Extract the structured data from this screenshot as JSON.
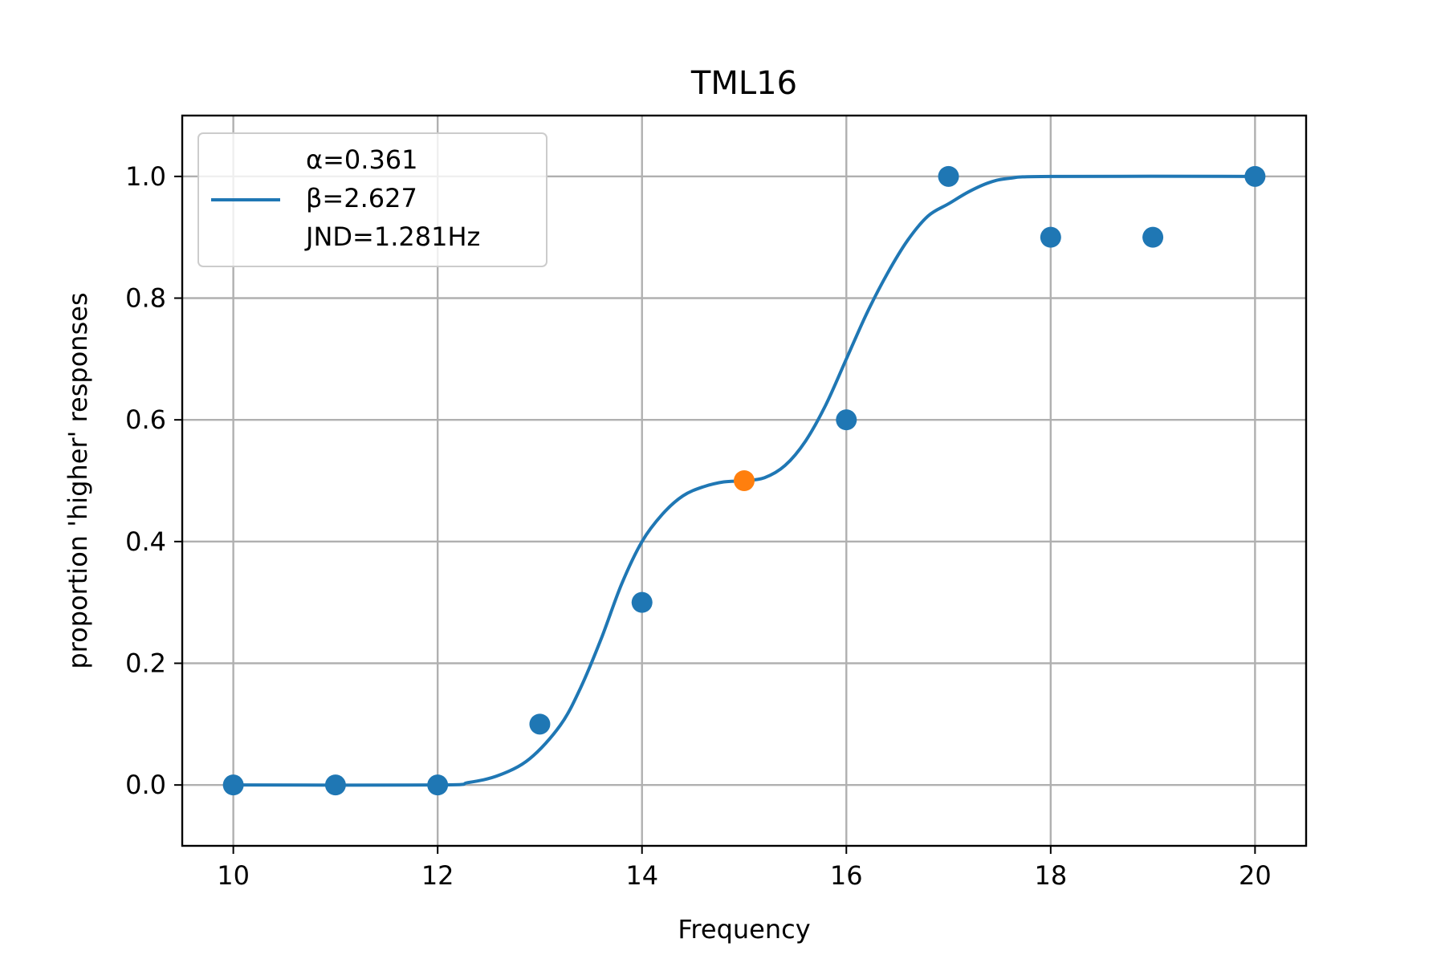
{
  "chart_data": {
    "type": "scatter",
    "title": "TML16",
    "xlabel": "Frequency",
    "ylabel": "proportion 'higher' responses",
    "xlim": [
      9.5,
      20.5
    ],
    "ylim": [
      -0.1,
      1.1
    ],
    "xticks": [
      10,
      12,
      14,
      16,
      18,
      20
    ],
    "yticks": [
      0.0,
      0.2,
      0.4,
      0.6,
      0.8,
      1.0
    ],
    "xtick_labels": [
      "10",
      "12",
      "14",
      "16",
      "18",
      "20"
    ],
    "ytick_labels": [
      "0.0",
      "0.2",
      "0.4",
      "0.6",
      "0.8",
      "1.0"
    ],
    "grid": true,
    "legend_position": "top-left",
    "legend_lines": [
      "α=0.361",
      "β=2.627",
      "JND=1.281Hz"
    ],
    "series": [
      {
        "kind": "points",
        "color": "#1f77b4",
        "x": [
          10,
          11,
          12,
          13,
          14,
          16,
          17,
          18,
          19,
          20
        ],
        "y": [
          0.0,
          0.0,
          0.0,
          0.1,
          0.3,
          0.6,
          1.0,
          0.9,
          0.9,
          1.0
        ]
      },
      {
        "kind": "points",
        "color": "#ff7f0e",
        "x": [
          15
        ],
        "y": [
          0.5
        ]
      },
      {
        "kind": "line",
        "color": "#1f77b4",
        "x": [
          10.0,
          12.0,
          12.3,
          12.6,
          12.9,
          13.2,
          13.4,
          13.6,
          13.8,
          14.0,
          14.2,
          14.4,
          14.6,
          14.8,
          15.0,
          15.2,
          15.4,
          15.6,
          15.8,
          16.0,
          16.2,
          16.4,
          16.6,
          16.8,
          17.0,
          17.2,
          17.4,
          17.6,
          18.0,
          20.0
        ],
        "y": [
          0.0,
          0.0,
          0.004,
          0.016,
          0.043,
          0.098,
          0.16,
          0.24,
          0.33,
          0.4,
          0.445,
          0.475,
          0.49,
          0.498,
          0.5,
          0.505,
          0.525,
          0.565,
          0.625,
          0.7,
          0.775,
          0.84,
          0.895,
          0.935,
          0.955,
          0.975,
          0.99,
          0.997,
          1.0,
          1.0
        ]
      }
    ]
  }
}
